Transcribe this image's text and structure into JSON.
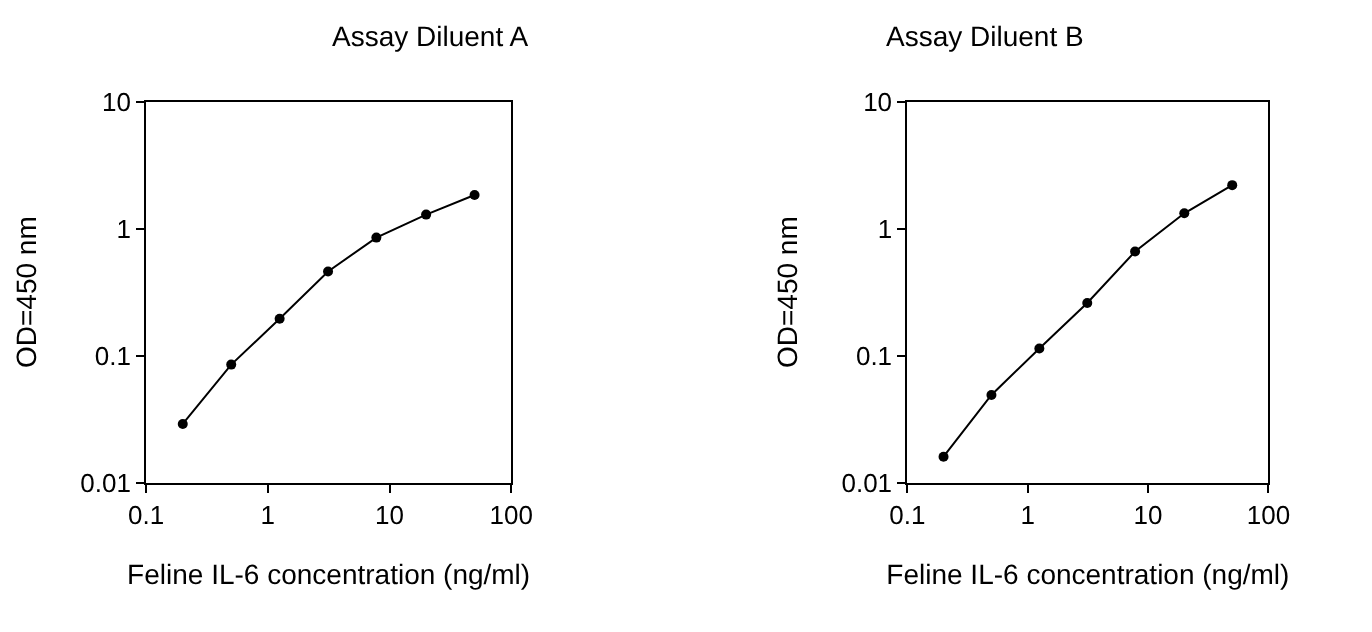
{
  "chart_data": [
    {
      "type": "line",
      "title": "Assay Diluent A",
      "xlabel": "Feline IL-6 concentration (ng/ml)",
      "ylabel": "OD=450 nm",
      "log": "xy",
      "marker": "circle",
      "line_style": "solid",
      "x": [
        0.2,
        0.5,
        1.25,
        3.125,
        7.8,
        20,
        50
      ],
      "series": [
        {
          "color": "#000000",
          "values": [
            0.029,
            0.085,
            0.195,
            0.46,
            0.85,
            1.29,
            1.84
          ]
        }
      ],
      "xlim": [
        0.1,
        100
      ],
      "xticks": [
        0.1,
        1,
        10,
        100
      ],
      "ylim": [
        0.01,
        10
      ],
      "yticks": [
        0.01,
        0.1,
        1,
        10
      ]
    },
    {
      "type": "line",
      "title": "Assay Diluent B",
      "xlabel": "Feline IL-6 concentration (ng/ml)",
      "ylabel": "OD=450 nm",
      "log": "xy",
      "marker": "circle",
      "line_style": "solid",
      "x": [
        0.2,
        0.5,
        1.25,
        3.125,
        7.8,
        20,
        50
      ],
      "series": [
        {
          "color": "#000000",
          "values": [
            0.016,
            0.049,
            0.114,
            0.26,
            0.66,
            1.32,
            2.2
          ]
        }
      ],
      "xlim": [
        0.1,
        100
      ],
      "xticks": [
        0.1,
        1,
        10,
        100
      ],
      "ylim": [
        0.01,
        10
      ],
      "yticks": [
        0.01,
        0.1,
        1,
        10
      ]
    }
  ]
}
